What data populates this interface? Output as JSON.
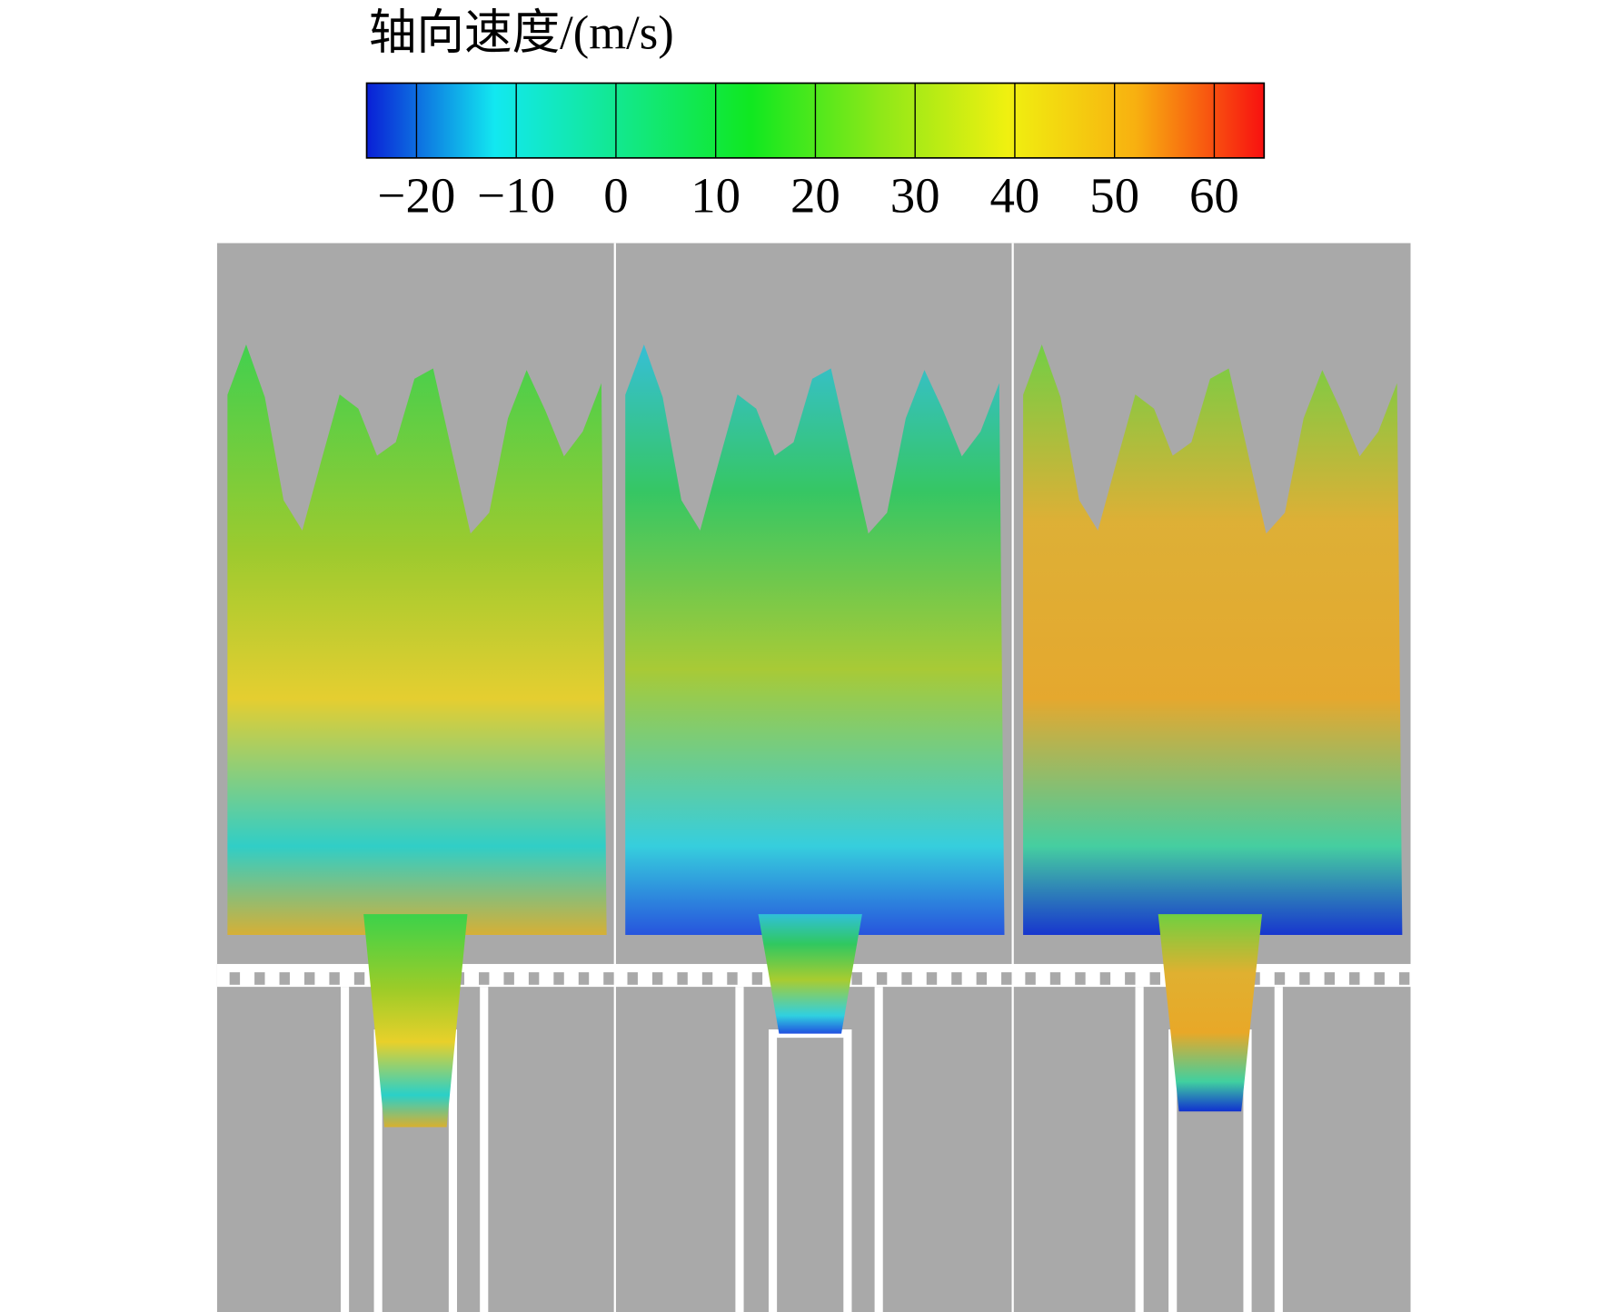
{
  "chart_data": {
    "type": "colorbar",
    "title": "轴向速度/(m/s)",
    "xlim": [
      -25,
      65
    ],
    "xticks": [
      {
        "value": -20,
        "label": "−20"
      },
      {
        "value": -10,
        "label": "−10"
      },
      0,
      10,
      20,
      30,
      40,
      50,
      60
    ],
    "colors": [
      "#0a1fd6",
      "#12e8f0",
      "#12e88a",
      "#10e820",
      "#8ee818",
      "#f0f010",
      "#f8b010",
      "#f81010"
    ]
  }
}
